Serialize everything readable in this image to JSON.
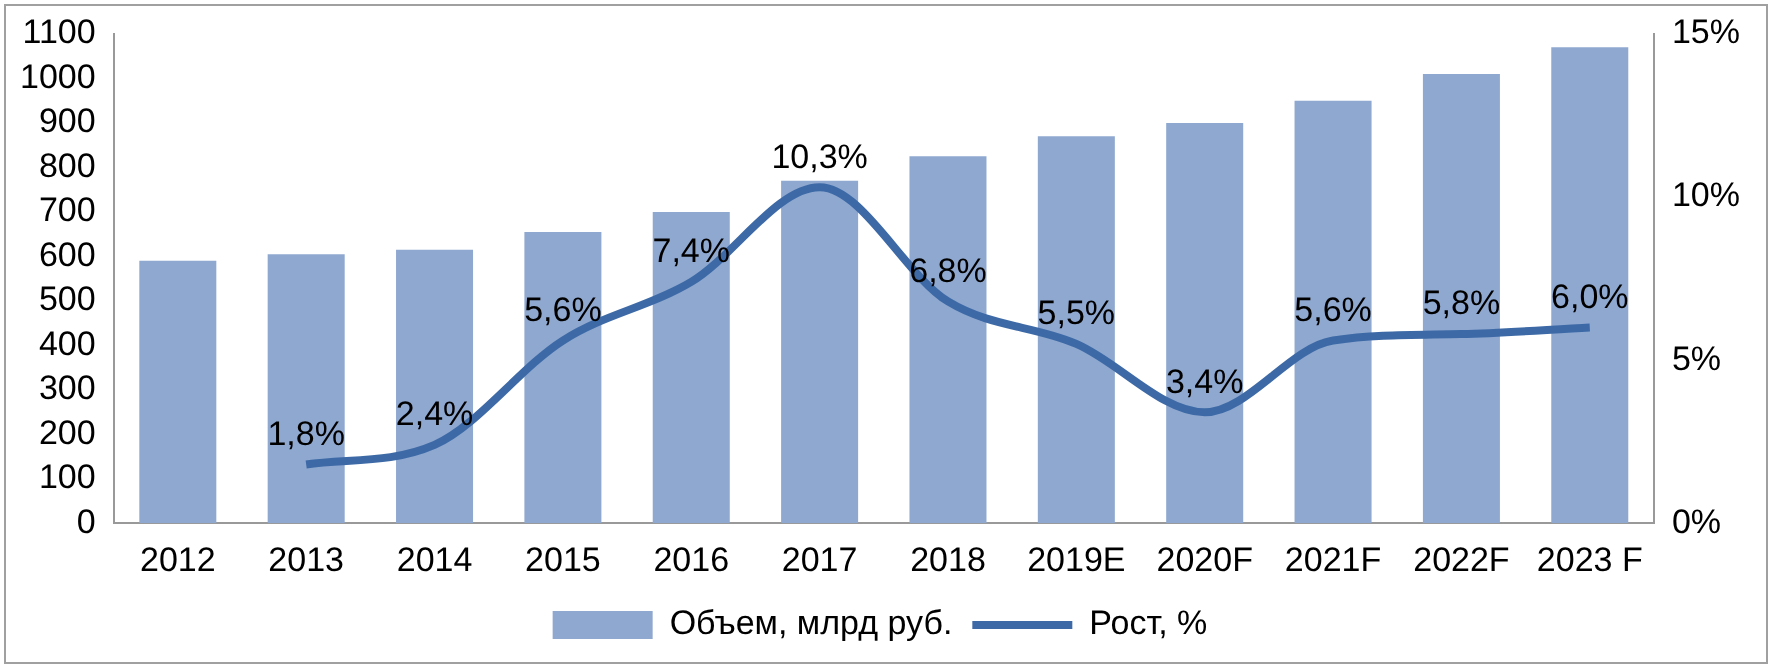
{
  "chart_data": {
    "type": "bar",
    "categories": [
      "2012",
      "2013",
      "2014",
      "2015",
      "2016",
      "2017",
      "2018",
      "2019E",
      "2020F",
      "2021F",
      "2022F",
      "2023 F"
    ],
    "series": [
      {
        "name": "Объем, млрд руб.",
        "color": "#8fa8d0",
        "values": [
          590,
          605,
          615,
          655,
          700,
          770,
          825,
          870,
          900,
          950,
          1010,
          1070
        ]
      },
      {
        "name": "Рост, %",
        "type": "line",
        "axis": "y2",
        "color": "#3d6aa6",
        "values": [
          null,
          1.8,
          2.4,
          5.6,
          7.4,
          10.3,
          6.8,
          5.5,
          3.4,
          5.6,
          5.8,
          6.0
        ],
        "value_labels": [
          null,
          "1,8%",
          "2,4%",
          "5,6%",
          "7,4%",
          "10,3%",
          "6,8%",
          "5,5%",
          "3,4%",
          "5,6%",
          "5,8%",
          "6,0%"
        ]
      }
    ],
    "ylim": [
      0,
      1100
    ],
    "yticks": [
      0,
      100,
      200,
      300,
      400,
      500,
      600,
      700,
      800,
      900,
      1000,
      1100
    ],
    "y2lim": [
      0,
      15
    ],
    "y2ticks": [
      {
        "value": 0,
        "label": "0%"
      },
      {
        "value": 5,
        "label": "5%"
      },
      {
        "value": 10,
        "label": "10%"
      },
      {
        "value": 15,
        "label": "15%"
      }
    ],
    "grid": false,
    "legend": "bottom",
    "marker": "none",
    "line_style": "solid"
  }
}
